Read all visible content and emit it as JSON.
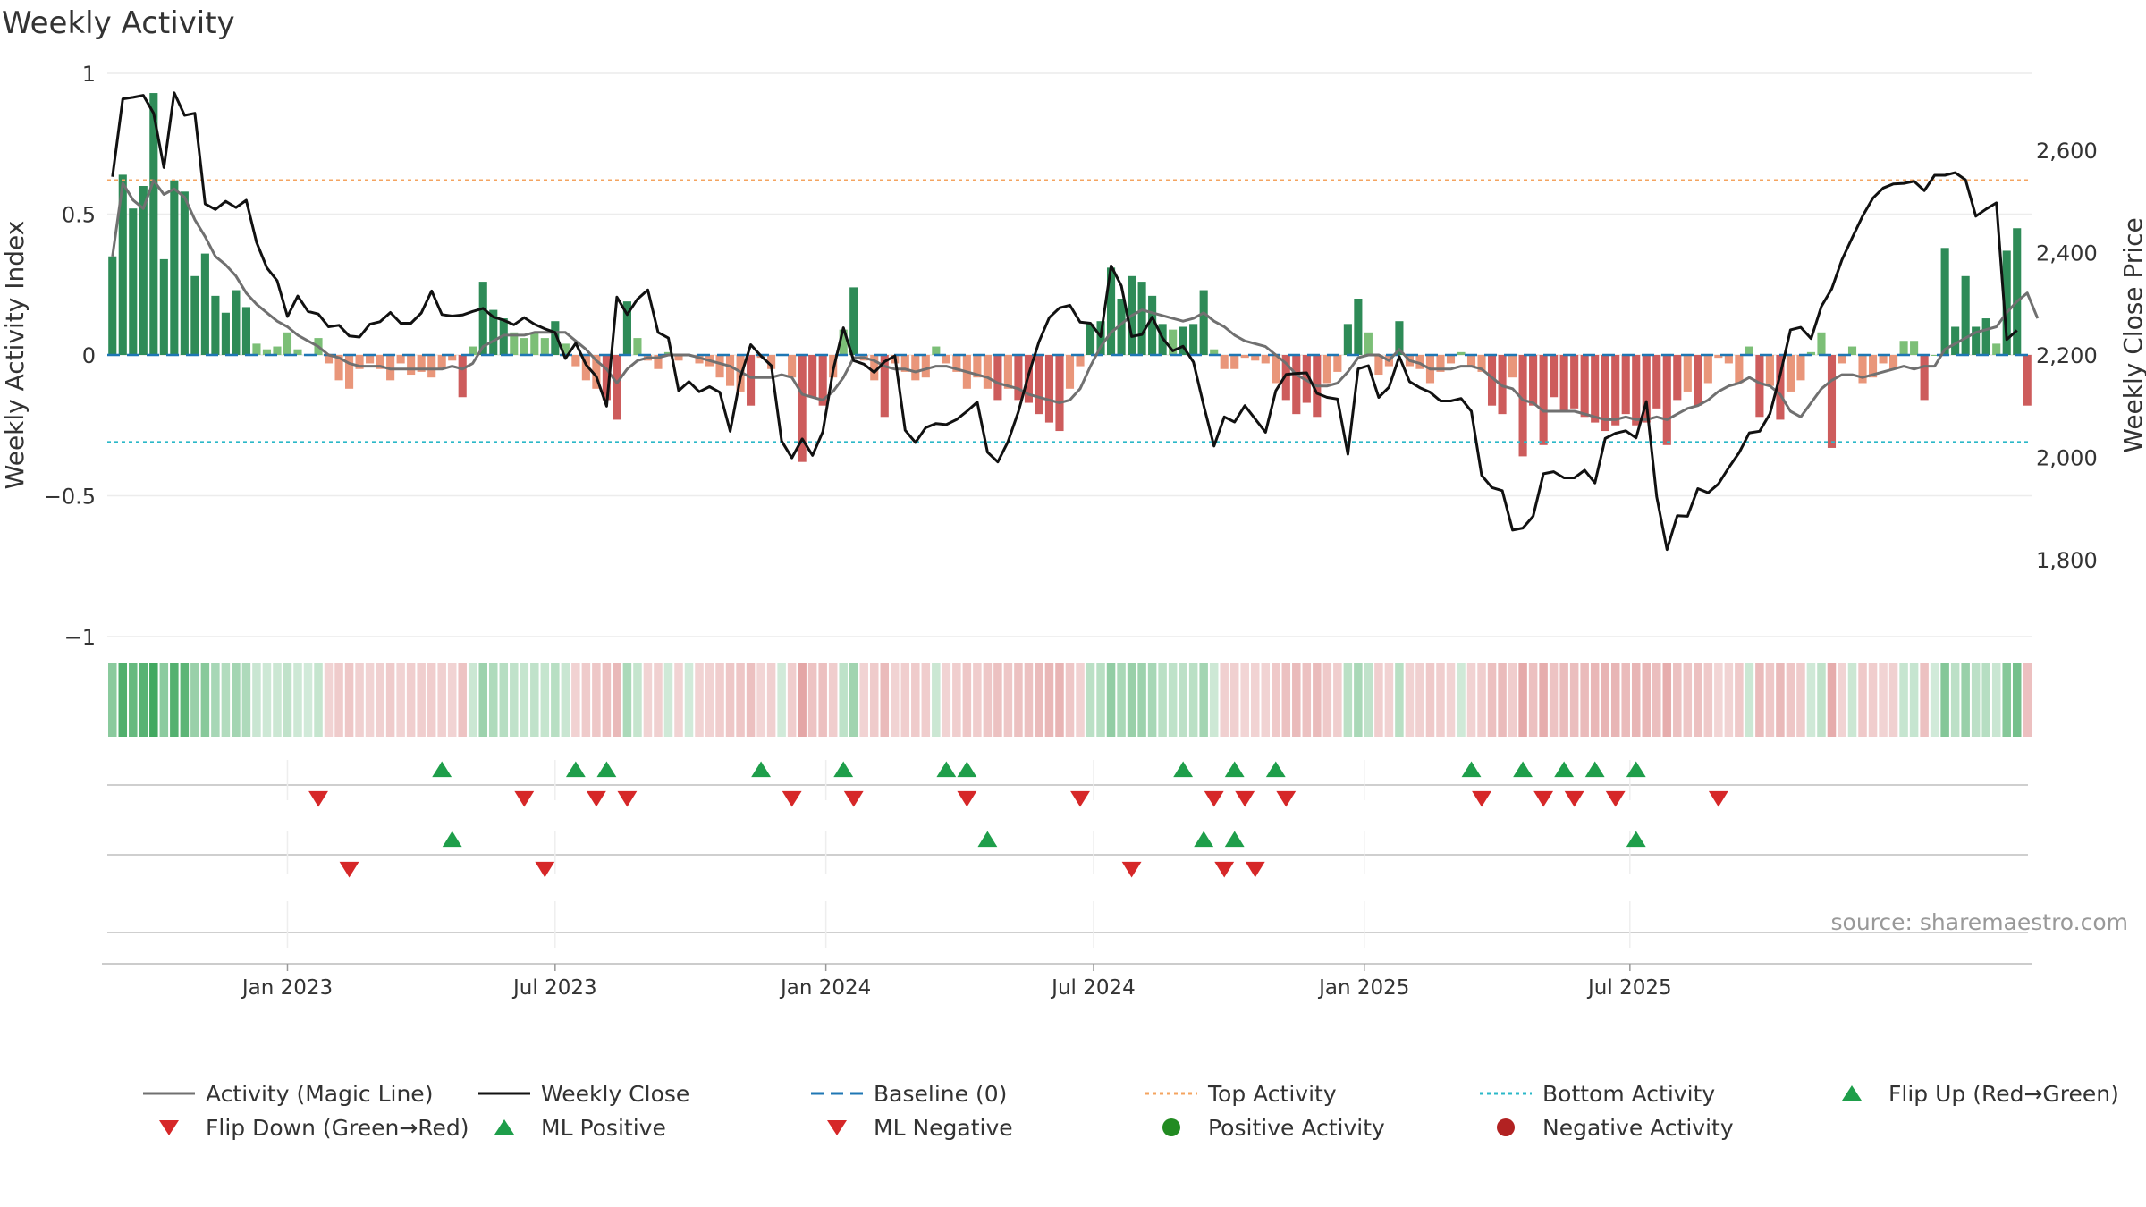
{
  "title": "Weekly Activity",
  "source": "source: sharemaestro.com",
  "colors": {
    "green_dark": "#2e8b57",
    "green_light": "#7cbf77",
    "red_dark": "#cd5c5c",
    "red_light": "#e9967a",
    "magic_line": "#707070",
    "close_line": "#111111",
    "baseline": "#1f77b4",
    "top_line": "#f4a460",
    "bottom_line": "#2bb8c8",
    "flip_up": "#1e9e4a",
    "flip_down": "#d62728"
  },
  "legend": [
    {
      "key": "magic",
      "label": "Activity (Magic Line)",
      "symbol": "line",
      "color": "#707070"
    },
    {
      "key": "close",
      "label": "Weekly Close",
      "symbol": "line",
      "color": "#111111"
    },
    {
      "key": "baseline",
      "label": "Baseline (0)",
      "symbol": "dash",
      "color": "#1f77b4"
    },
    {
      "key": "top",
      "label": "Top Activity",
      "symbol": "dot",
      "color": "#f4a460"
    },
    {
      "key": "bottom",
      "label": "Bottom Activity",
      "symbol": "dot",
      "color": "#2bb8c8"
    },
    {
      "key": "flipup",
      "label": "Flip Up (Red→Green)",
      "symbol": "tri-up",
      "color": "#1e9e4a"
    },
    {
      "key": "flipdown",
      "label": "Flip Down (Green→Red)",
      "symbol": "tri-down",
      "color": "#d62728"
    },
    {
      "key": "mlpos",
      "label": "ML Positive",
      "symbol": "tri-up",
      "color": "#1e9e4a"
    },
    {
      "key": "mlneg",
      "label": "ML Negative",
      "symbol": "tri-down",
      "color": "#d62728"
    },
    {
      "key": "pos",
      "label": "Positive Activity",
      "symbol": "circle",
      "color": "#228b22"
    },
    {
      "key": "neg",
      "label": "Negative Activity",
      "symbol": "circle",
      "color": "#b22222"
    }
  ],
  "chart_data": {
    "type": "bar",
    "title": "Weekly Activity",
    "x_start": "2022-10-30",
    "week_count": 188,
    "x_ticks": [
      {
        "label": "Jan 2023",
        "week": 17
      },
      {
        "label": "Jul 2023",
        "week": 43
      },
      {
        "label": "Jan 2024",
        "week": 69.3
      },
      {
        "label": "Jul 2024",
        "week": 95.3
      },
      {
        "label": "Jan 2025",
        "week": 121.6
      },
      {
        "label": "Jul 2025",
        "week": 147.4
      }
    ],
    "y_left": {
      "label": "Weekly Activity Index",
      "lim": [
        -1,
        1
      ],
      "ticks": [
        1,
        0.5,
        0,
        -0.5,
        -1
      ],
      "tick_labels": [
        "1",
        "0.5",
        "0",
        "−0.5",
        "−1"
      ]
    },
    "y_right": {
      "label": "Weekly Close Price",
      "lim": [
        1650,
        2750
      ],
      "ticks": [
        2600,
        2400,
        2200,
        2000,
        1800
      ],
      "tick_labels": [
        "2,600",
        "2,400",
        "2,200",
        "2,000",
        "1,800"
      ]
    },
    "top_activity": 0.62,
    "bottom_activity": -0.31,
    "activity": [
      0.35,
      0.64,
      0.52,
      0.6,
      0.93,
      0.34,
      0.62,
      0.58,
      0.28,
      0.36,
      0.21,
      0.15,
      0.23,
      0.17,
      0.04,
      0.02,
      0.03,
      0.08,
      0.02,
      0.0,
      0.06,
      -0.03,
      -0.09,
      -0.12,
      -0.05,
      -0.03,
      -0.05,
      -0.09,
      -0.03,
      -0.07,
      -0.06,
      -0.08,
      -0.05,
      -0.02,
      -0.15,
      0.03,
      0.26,
      0.16,
      0.13,
      0.08,
      0.06,
      0.08,
      0.06,
      0.12,
      0.04,
      -0.04,
      -0.09,
      -0.12,
      -0.16,
      -0.23,
      0.19,
      0.06,
      -0.02,
      -0.05,
      0.01,
      -0.02,
      0.0,
      -0.03,
      -0.04,
      -0.08,
      -0.11,
      -0.13,
      -0.18,
      -0.01,
      -0.05,
      0.0,
      -0.08,
      -0.38,
      -0.15,
      -0.18,
      -0.08,
      0.09,
      0.24,
      -0.02,
      -0.09,
      -0.22,
      -0.03,
      -0.06,
      -0.09,
      -0.08,
      0.03,
      -0.03,
      -0.06,
      -0.12,
      -0.08,
      -0.12,
      -0.16,
      -0.12,
      -0.16,
      -0.17,
      -0.21,
      -0.24,
      -0.27,
      -0.12,
      -0.04,
      0.11,
      0.12,
      0.31,
      0.2,
      0.28,
      0.26,
      0.21,
      0.11,
      0.09,
      0.1,
      0.11,
      0.23,
      0.02,
      -0.05,
      -0.05,
      -0.01,
      -0.02,
      -0.03,
      -0.1,
      -0.16,
      -0.21,
      -0.17,
      -0.22,
      -0.1,
      -0.06,
      0.11,
      0.2,
      0.08,
      -0.07,
      -0.04,
      0.12,
      -0.04,
      -0.05,
      -0.1,
      -0.06,
      -0.03,
      0.01,
      -0.04,
      -0.06,
      -0.18,
      -0.21,
      -0.08,
      -0.36,
      -0.18,
      -0.32,
      -0.15,
      -0.2,
      -0.19,
      -0.22,
      -0.24,
      -0.27,
      -0.25,
      -0.21,
      -0.25,
      -0.24,
      -0.19,
      -0.32,
      -0.16,
      -0.13,
      -0.18,
      -0.1,
      -0.01,
      -0.03,
      -0.1,
      0.03,
      -0.22,
      -0.11,
      -0.23,
      -0.13,
      -0.09,
      0.01,
      0.08,
      -0.33,
      -0.03,
      0.03,
      -0.1,
      -0.08,
      -0.03,
      -0.05,
      0.05,
      0.05,
      -0.16,
      0.0,
      0.38,
      0.1,
      0.28,
      0.1,
      0.13,
      0.04,
      0.37,
      0.45,
      -0.18
    ],
    "magic_line": [
      0.35,
      0.61,
      0.55,
      0.52,
      0.62,
      0.57,
      0.59,
      0.56,
      0.48,
      0.42,
      0.35,
      0.32,
      0.28,
      0.22,
      0.18,
      0.15,
      0.12,
      0.1,
      0.07,
      0.05,
      0.03,
      0.0,
      -0.01,
      -0.03,
      -0.04,
      -0.04,
      -0.04,
      -0.05,
      -0.05,
      -0.05,
      -0.05,
      -0.05,
      -0.05,
      -0.04,
      -0.05,
      -0.03,
      0.03,
      0.05,
      0.07,
      0.07,
      0.07,
      0.08,
      0.08,
      0.08,
      0.08,
      0.05,
      0.02,
      -0.02,
      -0.05,
      -0.1,
      -0.05,
      -0.02,
      -0.01,
      -0.01,
      0.0,
      0.0,
      0.0,
      -0.01,
      -0.02,
      -0.03,
      -0.04,
      -0.06,
      -0.08,
      -0.08,
      -0.08,
      -0.07,
      -0.08,
      -0.14,
      -0.15,
      -0.16,
      -0.13,
      -0.08,
      -0.01,
      -0.01,
      -0.02,
      -0.04,
      -0.05,
      -0.05,
      -0.06,
      -0.05,
      -0.04,
      -0.04,
      -0.05,
      -0.06,
      -0.07,
      -0.08,
      -0.1,
      -0.11,
      -0.12,
      -0.14,
      -0.15,
      -0.16,
      -0.17,
      -0.16,
      -0.12,
      -0.04,
      0.03,
      0.08,
      0.11,
      0.14,
      0.16,
      0.15,
      0.14,
      0.13,
      0.12,
      0.13,
      0.15,
      0.12,
      0.1,
      0.07,
      0.05,
      0.04,
      0.03,
      0.0,
      -0.03,
      -0.07,
      -0.09,
      -0.11,
      -0.11,
      -0.1,
      -0.06,
      -0.01,
      0.0,
      0.0,
      -0.02,
      0.02,
      -0.02,
      -0.03,
      -0.05,
      -0.05,
      -0.05,
      -0.04,
      -0.04,
      -0.05,
      -0.08,
      -0.11,
      -0.12,
      -0.16,
      -0.17,
      -0.2,
      -0.2,
      -0.2,
      -0.2,
      -0.21,
      -0.22,
      -0.23,
      -0.23,
      -0.22,
      -0.23,
      -0.23,
      -0.22,
      -0.23,
      -0.21,
      -0.19,
      -0.18,
      -0.16,
      -0.13,
      -0.11,
      -0.1,
      -0.08,
      -0.1,
      -0.11,
      -0.14,
      -0.2,
      -0.22,
      -0.17,
      -0.12,
      -0.09,
      -0.07,
      -0.07,
      -0.08,
      -0.07,
      -0.06,
      -0.05,
      -0.04,
      -0.05,
      -0.04,
      -0.04,
      0.02,
      0.04,
      0.06,
      0.08,
      0.09,
      0.1,
      0.15,
      0.19,
      0.22,
      0.13
    ],
    "weekly_close": [
      2548,
      2700,
      2703,
      2707,
      2672,
      2566,
      2712,
      2668,
      2672,
      2495,
      2484,
      2500,
      2488,
      2502,
      2420,
      2370,
      2345,
      2275,
      2315,
      2285,
      2280,
      2255,
      2258,
      2237,
      2235,
      2260,
      2265,
      2283,
      2262,
      2262,
      2282,
      2325,
      2279,
      2276,
      2278,
      2285,
      2291,
      2274,
      2268,
      2259,
      2273,
      2260,
      2251,
      2244,
      2193,
      2223,
      2181,
      2158,
      2100,
      2313,
      2279,
      2309,
      2327,
      2244,
      2233,
      2130,
      2148,
      2128,
      2138,
      2127,
      2051,
      2156,
      2220,
      2198,
      2179,
      2032,
      1999,
      2036,
      2004,
      2050,
      2170,
      2253,
      2189,
      2182,
      2166,
      2187,
      2198,
      2053,
      2029,
      2058,
      2066,
      2064,
      2074,
      2090,
      2108,
      2010,
      1991,
      2031,
      2089,
      2162,
      2226,
      2273,
      2292,
      2297,
      2264,
      2262,
      2236,
      2374,
      2335,
      2236,
      2240,
      2274,
      2233,
      2208,
      2217,
      2186,
      2101,
      2022,
      2079,
      2069,
      2101,
      2075,
      2049,
      2130,
      2162,
      2164,
      2165,
      2125,
      2117,
      2114,
      2006,
      2173,
      2179,
      2117,
      2137,
      2197,
      2148,
      2136,
      2127,
      2110,
      2110,
      2115,
      2090,
      1965,
      1941,
      1935,
      1858,
      1862,
      1885,
      1968,
      1972,
      1960,
      1960,
      1975,
      1950,
      2037,
      2047,
      2052,
      2038,
      2109,
      1923,
      1820,
      1886,
      1885,
      1939,
      1931,
      1948,
      1980,
      2009,
      2048,
      2051,
      2085,
      2161,
      2249,
      2254,
      2232,
      2295,
      2329,
      2386,
      2429,
      2471,
      2506,
      2526,
      2534,
      2535,
      2539,
      2521,
      2551,
      2551,
      2556,
      2542,
      2471,
      2485,
      2497,
      2230,
      2248
    ],
    "heat_strip": "each week cell shaded green (positive) or red (negative), intensity by magnitude",
    "flip_up_weeks": [
      32,
      45,
      48,
      63,
      71,
      81,
      83,
      104,
      109,
      113,
      132,
      137,
      141,
      144,
      148
    ],
    "flip_down_weeks": [
      20,
      40,
      47,
      50,
      66,
      72,
      83,
      94,
      107,
      110,
      114,
      133,
      139,
      142,
      146,
      156
    ],
    "ml_positive_weeks": [
      33,
      85,
      106,
      109,
      148
    ],
    "ml_negative_weeks": [
      23,
      42,
      99,
      108,
      111
    ]
  }
}
